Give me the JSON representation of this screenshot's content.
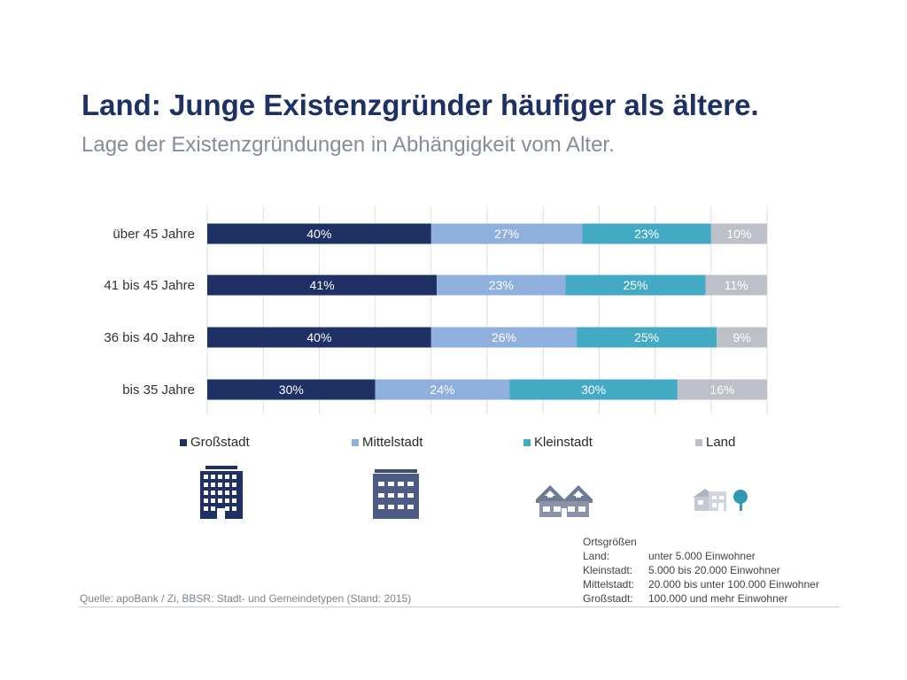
{
  "header": {
    "title": "Land: Junge Existenzgründer häufiger als ältere.",
    "subtitle": "Lage der Existenzgründungen in Abhängigkeit vom Alter."
  },
  "colors": {
    "grossstadt": "#1f3164",
    "mittelstadt": "#8fb0dc",
    "kleinstadt": "#43aac4",
    "land": "#bdc0c9"
  },
  "chart_data": {
    "type": "bar",
    "orientation": "horizontal",
    "stacked": true,
    "categories": [
      "über 45 Jahre",
      "41 bis 45 Jahre",
      "36 bis 40 Jahre",
      "bis 35 Jahre"
    ],
    "series": [
      {
        "name": "Großstadt",
        "values": [
          40,
          41,
          40,
          30
        ],
        "labels": [
          "40%",
          "41%",
          "40%",
          "30%"
        ]
      },
      {
        "name": "Mittelstadt",
        "values": [
          27,
          23,
          26,
          24
        ],
        "labels": [
          "27%",
          "23%",
          "26%",
          "24%"
        ]
      },
      {
        "name": "Kleinstadt",
        "values": [
          23,
          25,
          25,
          30
        ],
        "labels": [
          "23%",
          "25%",
          "25%",
          "30%"
        ]
      },
      {
        "name": "Land",
        "values": [
          10,
          11,
          9,
          16
        ],
        "labels": [
          "10%",
          "11%",
          "9%",
          "16%"
        ]
      }
    ],
    "xlim": [
      0,
      100
    ],
    "grid": true,
    "legend_position": "bottom"
  },
  "legend": [
    "Großstadt",
    "Mittelstadt",
    "Kleinstadt",
    "Land"
  ],
  "icons": [
    "office-tower-icon",
    "apartment-building-icon",
    "houses-icon",
    "rural-house-tree-icon"
  ],
  "footer": {
    "source": "Quelle: apoBank / Zi, BBSR: Stadt- und Gemeindetypen (Stand: 2015)",
    "sizes_title": "Ortsgrößen",
    "sizes": [
      {
        "label": "Land:",
        "value": "unter 5.000 Einwohner"
      },
      {
        "label": "Kleinstadt:",
        "value": "5.000 bis 20.000 Einwohner"
      },
      {
        "label": "Mittelstadt:",
        "value": "20.000 bis unter 100.000 Einwohner"
      },
      {
        "label": "Großstadt:",
        "value": "100.000 und mehr Einwohner"
      }
    ]
  }
}
